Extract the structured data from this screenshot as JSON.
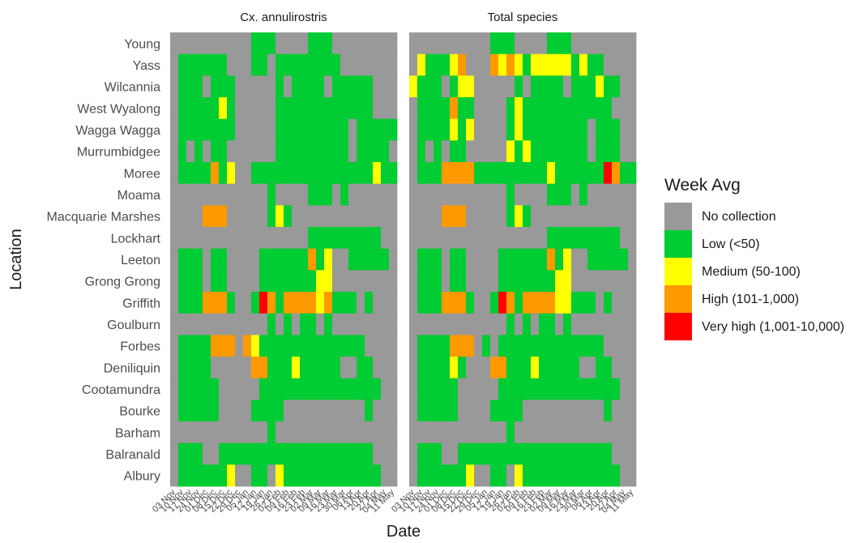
{
  "chart_data": {
    "type": "heatmap",
    "xlabel": "Date",
    "ylabel": "Location",
    "panels": [
      "Cx. annulirostris",
      "Total species"
    ],
    "locations": [
      "Young",
      "Yass",
      "Wilcannia",
      "West Wyalong",
      "Wagga Wagga",
      "Murrumbidgee",
      "Moree",
      "Moama",
      "Macquarie Marshes",
      "Lockhart",
      "Leeton",
      "Grong Grong",
      "Griffith",
      "Goulburn",
      "Forbes",
      "Deniliquin",
      "Cootamundra",
      "Bourke",
      "Barham",
      "Balranald",
      "Albury"
    ],
    "dates": [
      "03 Nov",
      "10 Nov",
      "17 Nov",
      "24 Nov",
      "01 Dec",
      "08 Dec",
      "15 Dec",
      "22 Dec",
      "29 Dec",
      "05 Jan",
      "12 Jan",
      "19 Jan",
      "26 Jan",
      "02 Feb",
      "09 Feb",
      "16 Feb",
      "23 Feb",
      "02 Mar",
      "09 Mar",
      "16 Mar",
      "23 Mar",
      "30 Mar",
      "06 Apr",
      "13 Apr",
      "20 Apr",
      "27 Apr",
      "04 May",
      "11 May"
    ],
    "x_tick_labels": [
      "03 Nov",
      "10 Nov",
      "17 Nov",
      "24 Nov",
      "01 Dec",
      "08 Dec",
      "15 Dec",
      "22 Dec",
      "29 Dec",
      "05 Jan",
      "12 Jan",
      "19 Jan",
      "26 Jan",
      "02 Feb",
      "09 Feb",
      "16 Feb",
      "23 Feb",
      "02 Mar",
      "09 Mar",
      "16 Mar",
      "23 Mar",
      "30 Mar",
      "06 Apr",
      "13 Apr",
      "20 Apr",
      "27 Apr",
      "04 May",
      "11 May"
    ],
    "legend_title": "Week Avg",
    "legend_position": "right",
    "categories": [
      {
        "code": 0,
        "label": "No collection",
        "color": "#999999"
      },
      {
        "code": 1,
        "label": "Low (<50)",
        "color": "#00cc33"
      },
      {
        "code": 2,
        "label": "Medium (50-100)",
        "color": "#ffff00"
      },
      {
        "code": 3,
        "label": "High (101-1,000)",
        "color": "#ff9900"
      },
      {
        "code": 4,
        "label": "Very high (1,001-10,000)",
        "color": "#ff0000"
      }
    ],
    "values": {
      "Cx. annulirostris": {
        "Young": "0000000000111000011100000000",
        "Yass": "0111111000110111111110000000",
        "Wilcannia": "0111011100000101111011111000",
        "West Wyalong": "0111112100000111111111111000",
        "Wagga Wagga": "0111111100000111111111011111",
        "Murrumbidgee": "0101011000000111111111011110",
        "Moree": "0111131200111111111111111211",
        "Moama": "0000000000001000011101000000",
        "Macquarie Marshes": "0000333000001210000000000000",
        "Lockhart": "0000000000000000011111111100",
        "Leeton": "0111011000011111131200111110",
        "Grong Grong": "0111011000011111112200000000",
        "Griffith": "0111333100143133332311101000",
        "Goulburn": "0000000000001010110100000000",
        "Forbes": "0111133303211111111111110000",
        "Deniliquin": "0111100000331112111110011000",
        "Cootamundra": "0111110000011111111111111100",
        "Bourke": "0111110000111100000000001000",
        "Barham": "0000000000001000000000000000",
        "Balranald": "0111001111111111111111111000",
        "Albury": "0111111200110211111111111100"
      },
      "Total species": {
        "Young": "0000000000111000011100000000",
        "Yass": "0211123000323212222212110000",
        "Wilcannia": "2111012200000101111011121100",
        "West Wyalong": "0111131100001211111111111000",
        "Wagga Wagga": "0111121200001211111111011100",
        "Murrumbidgee": "0101011000002121111111011100",
        "Moree": "0111333311111111121111114311",
        "Moama": "0000000000001000011101000000",
        "Macquarie Marshes": "0000333000001210000000000000",
        "Lockhart": "0000000000000000011111111100",
        "Leeton": "0111011000011111131200111110",
        "Grong Grong": "0111011000011111112200000000",
        "Griffith": "0111333100143133332211101000",
        "Goulburn": "0000000000001010110100000000",
        "Forbes": "0111133301011111111111110000",
        "Deniliquin": "0111121000331112111110011000",
        "Cootamundra": "0111110000011111111111111100",
        "Bourke": "0111110000111100000000001000",
        "Barham": "0000000000001000000000000000",
        "Balranald": "0111001111111111111111111000",
        "Albury": "0111111200110211111111111100"
      }
    }
  }
}
